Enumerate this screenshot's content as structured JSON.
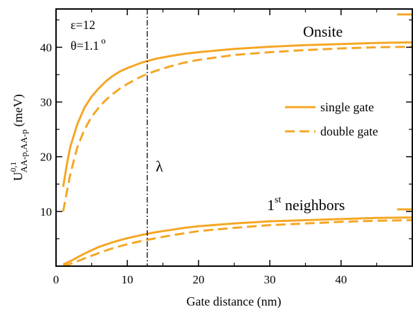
{
  "chart_data": {
    "type": "line",
    "xlabel": "Gate distance (nm)",
    "ylabel": "U",
    "ylabel_sup": "0,1",
    "ylabel_sub": "AA-p,AA-p",
    "ylabel_unit": "(meV)",
    "xlim": [
      0,
      50
    ],
    "ylim": [
      0,
      47
    ],
    "x_ticks": [
      0,
      10,
      20,
      30,
      40
    ],
    "y_ticks": [
      10,
      20,
      30,
      40
    ],
    "grid": false,
    "legend_placement": "right",
    "legend": [
      {
        "label": "single gate",
        "style": "solid"
      },
      {
        "label": "double gate",
        "style": "dashed"
      }
    ],
    "annotations": {
      "epsilon": "ε=12",
      "theta": "θ=1.1",
      "theta_sup": "o",
      "lambda": "λ",
      "onsite": "Onsite",
      "neighbors_prefix": "1",
      "neighbors_sup": "st",
      "neighbors_suffix": " neighbors"
    },
    "lambda_x": 12.8,
    "color": "#F5A623",
    "series": [
      {
        "group": "onsite",
        "style": "solid",
        "x": [
          1,
          1.5,
          2,
          3,
          4,
          5,
          6,
          7,
          8,
          9,
          10,
          12,
          14,
          16,
          18,
          20,
          25,
          30,
          35,
          40,
          45,
          50
        ],
        "y": [
          14.5,
          18.5,
          21.8,
          26.0,
          29.0,
          31.0,
          32.5,
          33.8,
          34.8,
          35.6,
          36.2,
          37.2,
          37.9,
          38.4,
          38.8,
          39.1,
          39.7,
          40.1,
          40.4,
          40.6,
          40.8,
          40.9
        ]
      },
      {
        "group": "onsite",
        "style": "dashed",
        "x": [
          1,
          1.5,
          2,
          3,
          4,
          5,
          6,
          7,
          8,
          9,
          10,
          12,
          14,
          16,
          18,
          20,
          25,
          30,
          35,
          40,
          45,
          50
        ],
        "y": [
          10.0,
          13.5,
          16.8,
          21.8,
          25.0,
          27.3,
          29.0,
          30.4,
          31.5,
          32.5,
          33.3,
          34.7,
          35.7,
          36.5,
          37.2,
          37.7,
          38.6,
          39.1,
          39.5,
          39.8,
          40.0,
          40.1
        ]
      },
      {
        "group": "neighbors",
        "style": "solid",
        "x": [
          1,
          2,
          3,
          4,
          5,
          6,
          8,
          10,
          12,
          14,
          16,
          18,
          20,
          25,
          30,
          35,
          40,
          45,
          50
        ],
        "y": [
          0.3,
          0.9,
          1.6,
          2.3,
          2.9,
          3.5,
          4.4,
          5.1,
          5.7,
          6.2,
          6.6,
          7.0,
          7.3,
          7.8,
          8.2,
          8.4,
          8.6,
          8.8,
          8.9
        ]
      },
      {
        "group": "neighbors",
        "style": "dashed",
        "x": [
          1,
          2,
          3,
          4,
          5,
          6,
          8,
          10,
          12,
          14,
          16,
          18,
          20,
          25,
          30,
          35,
          40,
          45,
          50
        ],
        "y": [
          0.0,
          0.4,
          0.9,
          1.4,
          1.9,
          2.4,
          3.3,
          4.0,
          4.6,
          5.1,
          5.6,
          6.0,
          6.4,
          7.0,
          7.5,
          7.8,
          8.1,
          8.3,
          8.4
        ]
      }
    ]
  }
}
